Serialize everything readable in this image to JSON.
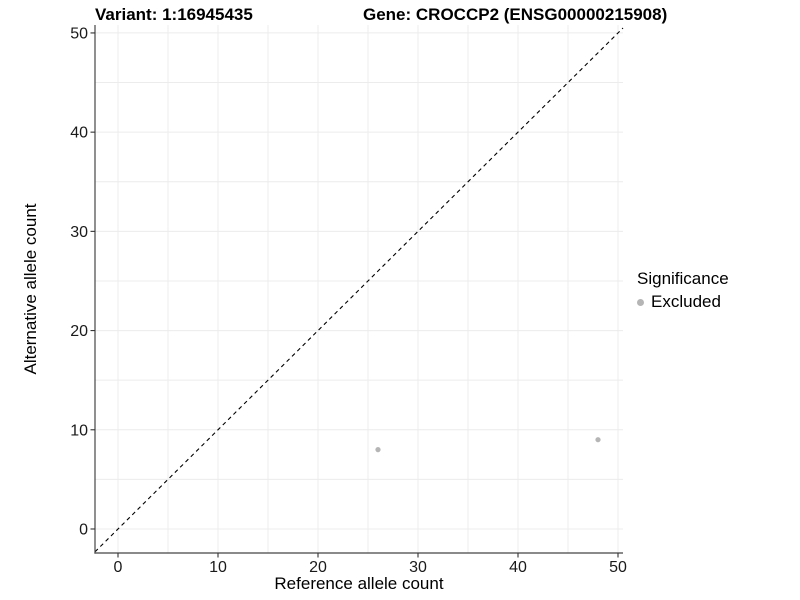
{
  "chart_data": {
    "type": "scatter",
    "titles": [
      "Variant: 1:16945435",
      "Gene: CROCCP2 (ENSG00000215908)"
    ],
    "xlabel": "Reference allele count",
    "ylabel": "Alternative allele count",
    "xticks": [
      0,
      10,
      20,
      30,
      40,
      50
    ],
    "yticks": [
      0,
      10,
      20,
      30,
      40,
      50
    ],
    "xlim": [
      -2.3,
      50.5
    ],
    "ylim": [
      -2.42,
      50.8
    ],
    "grid_step": 5,
    "grid_range": [
      0,
      50
    ],
    "series": [
      {
        "name": "Excluded",
        "color": "#b5b5b5",
        "points": [
          [
            26,
            8
          ],
          [
            48,
            9
          ]
        ]
      }
    ],
    "reference_line": {
      "slope": 1,
      "intercept": 0,
      "style": "dashed",
      "color": "#000000"
    },
    "legend": {
      "title": "Significance",
      "position": "right",
      "items": [
        {
          "label": "Excluded",
          "color": "#b5b5b5",
          "marker": "circle"
        }
      ]
    },
    "colors": {
      "background": "#ffffff",
      "grid": "#ececec",
      "axis_line": "#454545",
      "tick_mark": "#333333",
      "tick_text": "#1a1a1a"
    }
  }
}
